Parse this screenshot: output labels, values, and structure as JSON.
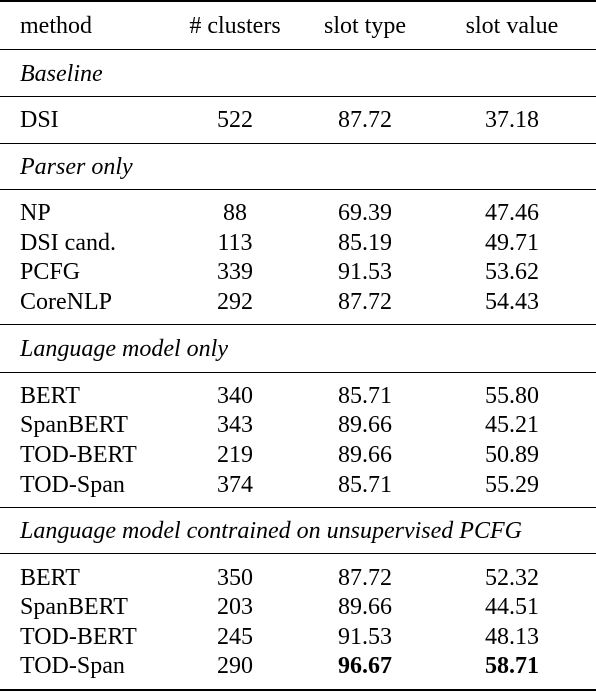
{
  "header": {
    "method": "method",
    "clusters": "# clusters",
    "slot_type": "slot type",
    "slot_value": "slot value"
  },
  "sections": [
    {
      "title": "Baseline",
      "rows": [
        {
          "method": "DSI",
          "clusters": "522",
          "slot_type": "87.72",
          "slot_value": "37.18"
        }
      ]
    },
    {
      "title": "Parser only",
      "rows": [
        {
          "method": "NP",
          "clusters": "88",
          "slot_type": "69.39",
          "slot_value": "47.46"
        },
        {
          "method": "DSI cand.",
          "clusters": "113",
          "slot_type": "85.19",
          "slot_value": "49.71"
        },
        {
          "method": "PCFG",
          "clusters": "339",
          "slot_type": "91.53",
          "slot_value": "53.62"
        },
        {
          "method": "CoreNLP",
          "clusters": "292",
          "slot_type": "87.72",
          "slot_value": "54.43"
        }
      ]
    },
    {
      "title": "Language model only",
      "rows": [
        {
          "method": "BERT",
          "clusters": "340",
          "slot_type": "85.71",
          "slot_value": "55.80"
        },
        {
          "method": "SpanBERT",
          "clusters": "343",
          "slot_type": "89.66",
          "slot_value": "45.21"
        },
        {
          "method": "TOD-BERT",
          "clusters": "219",
          "slot_type": "89.66",
          "slot_value": "50.89"
        },
        {
          "method": "TOD-Span",
          "clusters": "374",
          "slot_type": "85.71",
          "slot_value": "55.29"
        }
      ]
    },
    {
      "title": "Language model contrained on unsupervised PCFG",
      "rows": [
        {
          "method": "BERT",
          "clusters": "350",
          "slot_type": "87.72",
          "slot_value": "52.32"
        },
        {
          "method": "SpanBERT",
          "clusters": "203",
          "slot_type": "89.66",
          "slot_value": "44.51"
        },
        {
          "method": "TOD-BERT",
          "clusters": "245",
          "slot_type": "91.53",
          "slot_value": "48.13"
        },
        {
          "method": "TOD-Span",
          "clusters": "290",
          "slot_type": "96.67",
          "slot_value": "58.71"
        }
      ]
    }
  ]
}
